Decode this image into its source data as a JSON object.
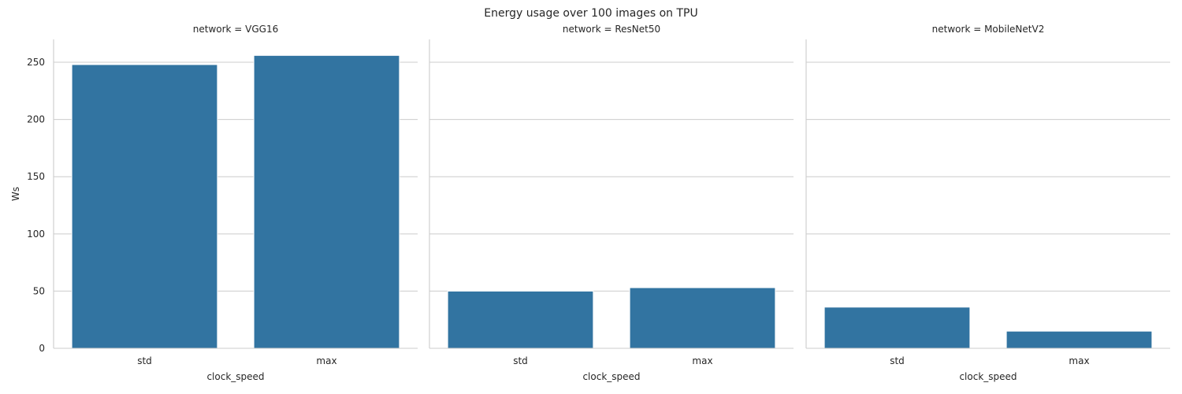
{
  "chart_data": {
    "type": "bar",
    "title": "Energy usage over 100 images on TPU",
    "xlabel": "clock_speed",
    "ylabel": "Ws",
    "categories": [
      "std",
      "max"
    ],
    "ylim": [
      0,
      270
    ],
    "yticks": [
      0,
      50,
      100,
      150,
      200,
      250
    ],
    "grid": true,
    "bar_color": "#3274a1",
    "facets": [
      {
        "title": "network = VGG16",
        "values": [
          248,
          256
        ]
      },
      {
        "title": "network = ResNet50",
        "values": [
          50,
          53
        ]
      },
      {
        "title": "network = MobileNetV2",
        "values": [
          36,
          15
        ]
      }
    ]
  }
}
